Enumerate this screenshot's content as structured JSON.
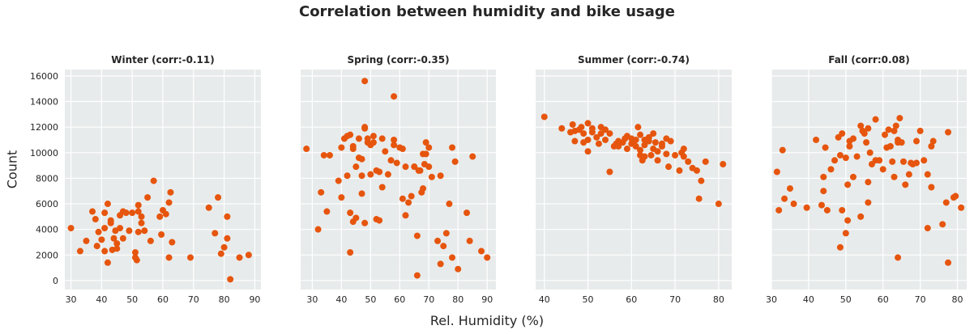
{
  "figure": {
    "title": "Correlation between humidity and bike usage",
    "xlabel": "Rel. Humidity (%)",
    "ylabel": "Count"
  },
  "colors": {
    "marker": "#e6550d",
    "panel_bg": "#e8ebeb",
    "grid": "#ffffff"
  },
  "chart_data": [
    {
      "type": "scatter",
      "title": "Winter (corr:-0.11)",
      "xlim": [
        28,
        92
      ],
      "ylim": [
        -700,
        16500
      ],
      "xticks": [
        30,
        40,
        50,
        60,
        70,
        80,
        90
      ],
      "yticks": [
        0,
        2000,
        4000,
        6000,
        8000,
        10000,
        12000,
        14000,
        16000
      ],
      "grid": true,
      "points": [
        [
          30,
          4100
        ],
        [
          33,
          2300
        ],
        [
          35,
          3100
        ],
        [
          37,
          5400
        ],
        [
          38,
          4800
        ],
        [
          38.5,
          2700
        ],
        [
          39,
          3800
        ],
        [
          40,
          3200
        ],
        [
          41,
          5300
        ],
        [
          41,
          4100
        ],
        [
          41,
          2300
        ],
        [
          42,
          6000
        ],
        [
          42,
          1400
        ],
        [
          43,
          4700
        ],
        [
          43,
          4500
        ],
        [
          43.5,
          2400
        ],
        [
          44,
          3300
        ],
        [
          44.5,
          3900
        ],
        [
          45,
          2500
        ],
        [
          45,
          2900
        ],
        [
          46,
          4100
        ],
        [
          46,
          5100
        ],
        [
          47,
          3300
        ],
        [
          47,
          5400
        ],
        [
          48,
          5300
        ],
        [
          49,
          3900
        ],
        [
          50,
          5300
        ],
        [
          51,
          2200
        ],
        [
          51,
          1800
        ],
        [
          51.5,
          1600
        ],
        [
          52,
          3800
        ],
        [
          52,
          5400
        ],
        [
          52,
          5900
        ],
        [
          53,
          4500
        ],
        [
          53,
          5000
        ],
        [
          54,
          3900
        ],
        [
          55,
          6500
        ],
        [
          56,
          3100
        ],
        [
          57,
          7800
        ],
        [
          59,
          5000
        ],
        [
          59.5,
          3600
        ],
        [
          60,
          5500
        ],
        [
          61,
          5200
        ],
        [
          62,
          6100
        ],
        [
          62,
          1800
        ],
        [
          62.5,
          6900
        ],
        [
          63,
          3000
        ],
        [
          69,
          1800
        ],
        [
          75,
          5700
        ],
        [
          77,
          3700
        ],
        [
          78,
          6500
        ],
        [
          79,
          2100
        ],
        [
          80,
          2600
        ],
        [
          81,
          3300
        ],
        [
          81,
          5000
        ],
        [
          82,
          100
        ],
        [
          85,
          1800
        ],
        [
          88,
          2000
        ]
      ]
    },
    {
      "type": "scatter",
      "title": "Spring (corr:-0.35)",
      "xlim": [
        26,
        93
      ],
      "ylim": [
        -700,
        16500
      ],
      "xticks": [
        30,
        40,
        50,
        60,
        70,
        80,
        90
      ],
      "yticks": [
        0,
        2000,
        4000,
        6000,
        8000,
        10000,
        12000,
        14000,
        16000
      ],
      "grid": true,
      "points": [
        [
          28,
          10300
        ],
        [
          32,
          4000
        ],
        [
          33,
          6900
        ],
        [
          34,
          9800
        ],
        [
          35,
          5400
        ],
        [
          36,
          9800
        ],
        [
          39,
          7800
        ],
        [
          40,
          10400
        ],
        [
          40,
          6500
        ],
        [
          41,
          11100
        ],
        [
          42,
          8200
        ],
        [
          42,
          11300
        ],
        [
          43,
          11400
        ],
        [
          43,
          5300
        ],
        [
          43,
          2200
        ],
        [
          44,
          4600
        ],
        [
          44,
          10300
        ],
        [
          44,
          10500
        ],
        [
          45,
          4900
        ],
        [
          45,
          8900
        ],
        [
          46,
          9600
        ],
        [
          46,
          11100
        ],
        [
          47,
          9500
        ],
        [
          47,
          8200
        ],
        [
          47,
          6800
        ],
        [
          48,
          11900
        ],
        [
          48,
          12000
        ],
        [
          48,
          15600
        ],
        [
          48,
          4500
        ],
        [
          49,
          10800
        ],
        [
          49,
          11100
        ],
        [
          50,
          10600
        ],
        [
          50,
          8300
        ],
        [
          51,
          11300
        ],
        [
          51,
          10800
        ],
        [
          52,
          4800
        ],
        [
          52,
          8600
        ],
        [
          53,
          4700
        ],
        [
          53,
          8500
        ],
        [
          54,
          7300
        ],
        [
          54,
          11100
        ],
        [
          55,
          10100
        ],
        [
          56,
          8300
        ],
        [
          57,
          9400
        ],
        [
          58,
          11000
        ],
        [
          58,
          14400
        ],
        [
          58,
          10600
        ],
        [
          59,
          9200
        ],
        [
          60,
          10400
        ],
        [
          61,
          10300
        ],
        [
          61,
          6400
        ],
        [
          62,
          5100
        ],
        [
          62,
          8900
        ],
        [
          63,
          6100
        ],
        [
          64,
          6600
        ],
        [
          65,
          8900
        ],
        [
          65,
          8900
        ],
        [
          66,
          3500
        ],
        [
          66,
          400
        ],
        [
          66.5,
          8600
        ],
        [
          67,
          8600
        ],
        [
          67.5,
          6900
        ],
        [
          68,
          7200
        ],
        [
          68,
          9900
        ],
        [
          68.5,
          9100
        ],
        [
          69,
          9900
        ],
        [
          69,
          10800
        ],
        [
          70,
          8900
        ],
        [
          70,
          10400
        ],
        [
          71,
          8100
        ],
        [
          73,
          3100
        ],
        [
          74,
          8200
        ],
        [
          74,
          1300
        ],
        [
          75,
          2700
        ],
        [
          76,
          3700
        ],
        [
          77,
          6000
        ],
        [
          78,
          10400
        ],
        [
          78,
          1800
        ],
        [
          79,
          9300
        ],
        [
          80,
          900
        ],
        [
          83,
          5300
        ],
        [
          84,
          3100
        ],
        [
          85,
          9700
        ],
        [
          88,
          2300
        ],
        [
          90,
          1800
        ]
      ]
    },
    {
      "type": "scatter",
      "title": "Summer (corr:-0.74)",
      "xlim": [
        38,
        83
      ],
      "ylim": [
        -700,
        16500
      ],
      "xticks": [
        40,
        50,
        60,
        70,
        80
      ],
      "yticks": [
        0,
        2000,
        4000,
        6000,
        8000,
        10000,
        12000,
        14000,
        16000
      ],
      "grid": true,
      "points": [
        [
          40,
          12800
        ],
        [
          44,
          11900
        ],
        [
          46,
          11600
        ],
        [
          46.5,
          12200
        ],
        [
          47,
          11700
        ],
        [
          47,
          10900
        ],
        [
          48,
          11800
        ],
        [
          48.5,
          12000
        ],
        [
          49,
          10800
        ],
        [
          49,
          11500
        ],
        [
          50,
          12300
        ],
        [
          50,
          11000
        ],
        [
          50,
          10100
        ],
        [
          51,
          11600
        ],
        [
          51,
          11900
        ],
        [
          52,
          11200
        ],
        [
          52.5,
          10700
        ],
        [
          53,
          11500
        ],
        [
          53,
          12000
        ],
        [
          54,
          11000
        ],
        [
          54,
          11800
        ],
        [
          55,
          11500
        ],
        [
          55,
          8500
        ],
        [
          56,
          10500
        ],
        [
          56.5,
          10700
        ],
        [
          57,
          10900
        ],
        [
          57,
          10500
        ],
        [
          58,
          10800
        ],
        [
          58.5,
          11100
        ],
        [
          59,
          10300
        ],
        [
          59,
          11300
        ],
        [
          60,
          10700
        ],
        [
          60,
          11100
        ],
        [
          60.5,
          10900
        ],
        [
          61,
          10500
        ],
        [
          61,
          11000
        ],
        [
          61.5,
          12000
        ],
        [
          62,
          10200
        ],
        [
          62,
          11400
        ],
        [
          62,
          9800
        ],
        [
          62.5,
          9400
        ],
        [
          63,
          9700
        ],
        [
          63,
          10600
        ],
        [
          63,
          11000
        ],
        [
          64,
          10900
        ],
        [
          64,
          11200
        ],
        [
          64.5,
          9800
        ],
        [
          65,
          10300
        ],
        [
          65,
          11500
        ],
        [
          65.5,
          10800
        ],
        [
          66,
          10100
        ],
        [
          66,
          9400
        ],
        [
          67,
          10700
        ],
        [
          67,
          10500
        ],
        [
          68,
          9900
        ],
        [
          68,
          11100
        ],
        [
          68.5,
          8900
        ],
        [
          69,
          10900
        ],
        [
          70,
          9800
        ],
        [
          71,
          8600
        ],
        [
          71.5,
          10000
        ],
        [
          72,
          9700
        ],
        [
          72,
          10300
        ],
        [
          73,
          9300
        ],
        [
          74,
          8800
        ],
        [
          75,
          8600
        ],
        [
          75.5,
          6400
        ],
        [
          76,
          7800
        ],
        [
          77,
          9300
        ],
        [
          80,
          6000
        ],
        [
          81,
          9100
        ]
      ]
    },
    {
      "type": "scatter",
      "title": "Fall (corr:0.08)",
      "xlim": [
        30,
        82.5
      ],
      "ylim": [
        -700,
        16500
      ],
      "xticks": [
        30,
        40,
        50,
        60,
        70,
        80
      ],
      "yticks": [
        0,
        2000,
        4000,
        6000,
        8000,
        10000,
        12000,
        14000,
        16000
      ],
      "grid": true,
      "points": [
        [
          31.5,
          8500
        ],
        [
          32,
          5500
        ],
        [
          33,
          10200
        ],
        [
          33.5,
          6400
        ],
        [
          35,
          7200
        ],
        [
          36,
          6000
        ],
        [
          39.5,
          5700
        ],
        [
          42,
          11000
        ],
        [
          43.5,
          5900
        ],
        [
          44,
          8100
        ],
        [
          44,
          7000
        ],
        [
          44.5,
          10400
        ],
        [
          45,
          5500
        ],
        [
          46,
          8700
        ],
        [
          47,
          9400
        ],
        [
          48,
          11200
        ],
        [
          48.5,
          9800
        ],
        [
          48.5,
          2600
        ],
        [
          49,
          11500
        ],
        [
          49,
          5500
        ],
        [
          50,
          9600
        ],
        [
          50,
          3700
        ],
        [
          50.5,
          7500
        ],
        [
          50.5,
          4700
        ],
        [
          51,
          10900
        ],
        [
          51,
          10500
        ],
        [
          52,
          11100
        ],
        [
          52,
          8100
        ],
        [
          53,
          9700
        ],
        [
          54,
          12100
        ],
        [
          54,
          5000
        ],
        [
          54.5,
          11700
        ],
        [
          55,
          11500
        ],
        [
          55.5,
          10800
        ],
        [
          56,
          11900
        ],
        [
          56,
          6100
        ],
        [
          56,
          7700
        ],
        [
          56.5,
          10000
        ],
        [
          57,
          9100
        ],
        [
          58,
          12600
        ],
        [
          58,
          9400
        ],
        [
          59,
          9400
        ],
        [
          60,
          8700
        ],
        [
          60.5,
          11400
        ],
        [
          61,
          10400
        ],
        [
          61.5,
          11800
        ],
        [
          62,
          10500
        ],
        [
          62.5,
          9300
        ],
        [
          63,
          8100
        ],
        [
          63,
          11700
        ],
        [
          63.5,
          12100
        ],
        [
          64,
          11000
        ],
        [
          64,
          10800
        ],
        [
          64,
          1800
        ],
        [
          64.5,
          12700
        ],
        [
          65,
          10800
        ],
        [
          65.5,
          9300
        ],
        [
          66,
          7500
        ],
        [
          67,
          8300
        ],
        [
          67.5,
          9200
        ],
        [
          68,
          9100
        ],
        [
          69,
          9200
        ],
        [
          69,
          10900
        ],
        [
          70,
          11700
        ],
        [
          71,
          9400
        ],
        [
          72,
          8300
        ],
        [
          72,
          4100
        ],
        [
          73,
          10500
        ],
        [
          73,
          7300
        ],
        [
          73.5,
          10900
        ],
        [
          76,
          4400
        ],
        [
          77,
          6100
        ],
        [
          77.5,
          1400
        ],
        [
          77.5,
          11600
        ],
        [
          79,
          6500
        ],
        [
          79.5,
          6600
        ],
        [
          81,
          5700
        ]
      ]
    }
  ]
}
